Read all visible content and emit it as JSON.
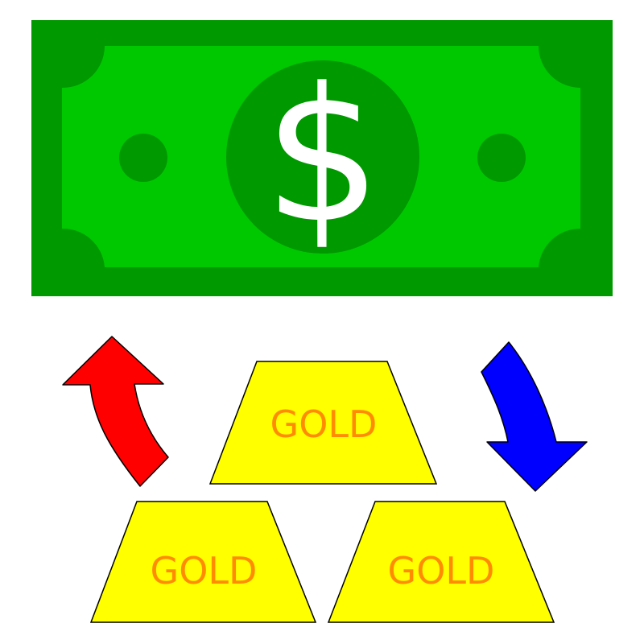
{
  "bill": {
    "symbol": "$",
    "colors": {
      "dark": "#009900",
      "light": "#00c800",
      "symbol": "#ffffff"
    }
  },
  "gold": {
    "bars": [
      {
        "label": "GOLD"
      },
      {
        "label": "GOLD"
      },
      {
        "label": "GOLD"
      }
    ],
    "colors": {
      "fill": "#ffff00",
      "text": "#ff8c00",
      "stroke": "#000000"
    }
  },
  "arrows": {
    "left": {
      "direction": "up",
      "color": "#ff0000"
    },
    "right": {
      "direction": "down",
      "color": "#0000ff"
    }
  }
}
